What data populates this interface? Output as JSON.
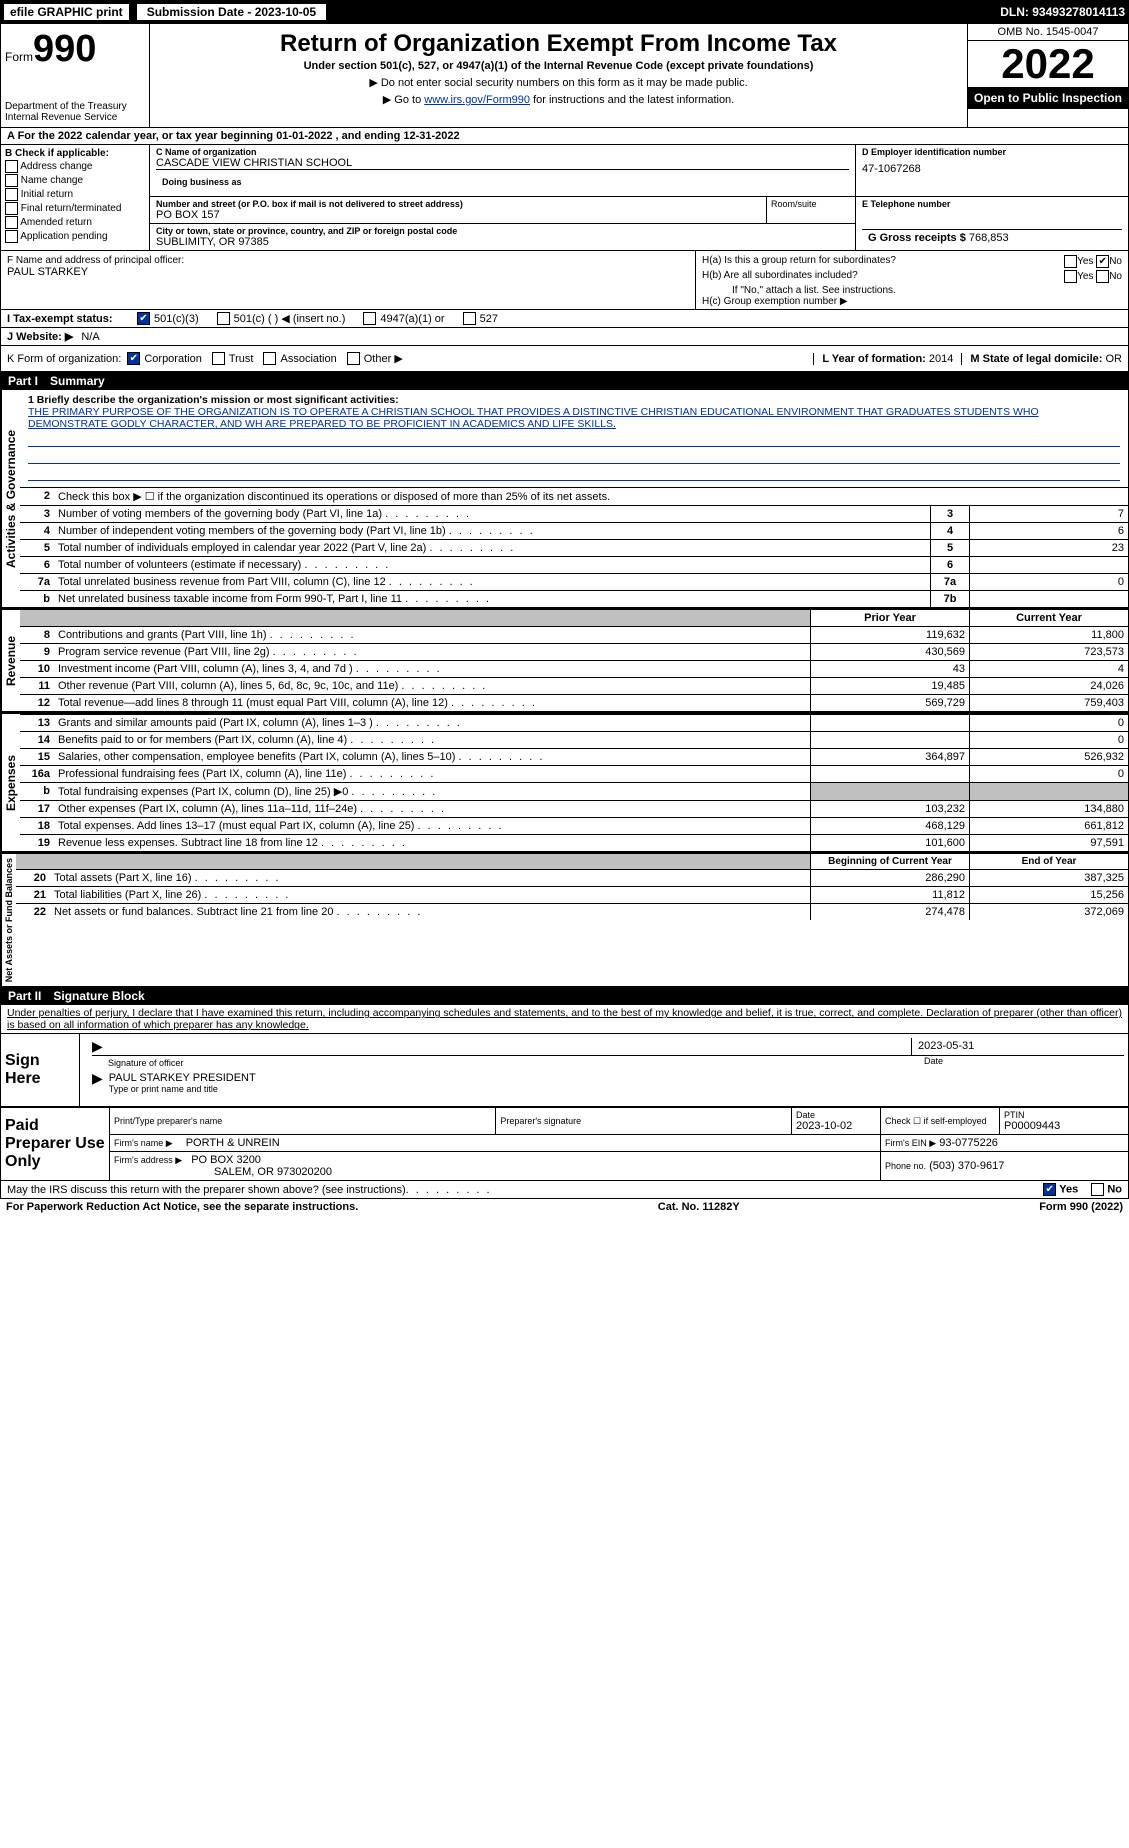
{
  "topbar": {
    "efile": "efile GRAPHIC print",
    "submission": "Submission Date - 2023-10-05",
    "dln": "DLN: 93493278014113"
  },
  "header": {
    "form_label": "Form",
    "form_number": "990",
    "title": "Return of Organization Exempt From Income Tax",
    "subtitle": "Under section 501(c), 527, or 4947(a)(1) of the Internal Revenue Code (except private foundations)",
    "warn": "▶ Do not enter social security numbers on this form as it may be made public.",
    "goto_prefix": "▶ Go to ",
    "goto_link": "www.irs.gov/Form990",
    "goto_suffix": " for instructions and the latest information.",
    "dept": "Department of the Treasury",
    "irs": "Internal Revenue Service",
    "omb": "OMB No. 1545-0047",
    "year": "2022",
    "inspection": "Open to Public Inspection"
  },
  "a_line": "A For the 2022 calendar year, or tax year beginning 01-01-2022    , and ending 12-31-2022",
  "check_b": {
    "label": "B Check if applicable:",
    "items": [
      "Address change",
      "Name change",
      "Initial return",
      "Final return/terminated",
      "Amended return",
      "Application pending"
    ]
  },
  "c": {
    "name_label": "C Name of organization",
    "name": "CASCADE VIEW CHRISTIAN SCHOOL",
    "dba_label": "Doing business as",
    "street_label": "Number and street (or P.O. box if mail is not delivered to street address)",
    "room_label": "Room/suite",
    "street": "PO BOX 157",
    "city_label": "City or town, state or province, country, and ZIP or foreign postal code",
    "city": "SUBLIMITY, OR  97385"
  },
  "d": {
    "label": "D Employer identification number",
    "ein": "47-1067268"
  },
  "e": {
    "label": "E Telephone number"
  },
  "g": {
    "label": "G Gross receipts $",
    "value": "768,853"
  },
  "f": {
    "label": "F  Name and address of principal officer:",
    "name": "PAUL STARKEY"
  },
  "h": {
    "a_label": "H(a)  Is this a group return for subordinates?",
    "b_label": "H(b)  Are all subordinates included?",
    "b_note": "If \"No,\" attach a list. See instructions.",
    "c_label": "H(c)  Group exemption number ▶",
    "yes": "Yes",
    "no": "No"
  },
  "i": {
    "label": "I  Tax-exempt status:",
    "opts": [
      "501(c)(3)",
      "501(c) (  ) ◀ (insert no.)",
      "4947(a)(1) or",
      "527"
    ]
  },
  "j": {
    "label": "J  Website: ▶",
    "value": "N/A"
  },
  "k": {
    "label": "K Form of organization:",
    "opts": [
      "Corporation",
      "Trust",
      "Association",
      "Other ▶"
    ]
  },
  "l": {
    "label": "L Year of formation:",
    "value": "2014"
  },
  "m": {
    "label": "M State of legal domicile:",
    "value": "OR"
  },
  "part1": {
    "title": "Part I",
    "name": "Summary"
  },
  "mission": {
    "label": "1  Briefly describe the organization's mission or most significant activities:",
    "text": "THE PRIMARY PURPOSE OF THE ORGANIZATION IS TO OPERATE A CHRISTIAN SCHOOL THAT PROVIDES A DISTINCTIVE CHRISTIAN EDUCATIONAL ENVIRONMENT THAT GRADUATES STUDENTS WHO DEMONSTRATE GODLY CHARACTER, AND WH ARE PREPARED TO BE PROFICIENT IN ACADEMICS AND LIFE SKILLS."
  },
  "governance": {
    "vert": "Activities & Governance",
    "line2": "Check this box ▶ ☐  if the organization discontinued its operations or disposed of more than 25% of its net assets.",
    "rows": [
      {
        "n": "3",
        "desc": "Number of voting members of the governing body (Part VI, line 1a)",
        "box": "3",
        "val": "7"
      },
      {
        "n": "4",
        "desc": "Number of independent voting members of the governing body (Part VI, line 1b)",
        "box": "4",
        "val": "6"
      },
      {
        "n": "5",
        "desc": "Total number of individuals employed in calendar year 2022 (Part V, line 2a)",
        "box": "5",
        "val": "23"
      },
      {
        "n": "6",
        "desc": "Total number of volunteers (estimate if necessary)",
        "box": "6",
        "val": ""
      },
      {
        "n": "7a",
        "desc": "Total unrelated business revenue from Part VIII, column (C), line 12",
        "box": "7a",
        "val": "0"
      },
      {
        "n": "b",
        "desc": "Net unrelated business taxable income from Form 990-T, Part I, line 11",
        "box": "7b",
        "val": ""
      }
    ]
  },
  "revenue": {
    "vert": "Revenue",
    "head_prior": "Prior Year",
    "head_current": "Current Year",
    "rows": [
      {
        "n": "8",
        "desc": "Contributions and grants (Part VIII, line 1h)",
        "prior": "119,632",
        "curr": "11,800"
      },
      {
        "n": "9",
        "desc": "Program service revenue (Part VIII, line 2g)",
        "prior": "430,569",
        "curr": "723,573"
      },
      {
        "n": "10",
        "desc": "Investment income (Part VIII, column (A), lines 3, 4, and 7d )",
        "prior": "43",
        "curr": "4"
      },
      {
        "n": "11",
        "desc": "Other revenue (Part VIII, column (A), lines 5, 6d, 8c, 9c, 10c, and 11e)",
        "prior": "19,485",
        "curr": "24,026"
      },
      {
        "n": "12",
        "desc": "Total revenue—add lines 8 through 11 (must equal Part VIII, column (A), line 12)",
        "prior": "569,729",
        "curr": "759,403"
      }
    ]
  },
  "expenses": {
    "vert": "Expenses",
    "rows": [
      {
        "n": "13",
        "desc": "Grants and similar amounts paid (Part IX, column (A), lines 1–3 )",
        "prior": "",
        "curr": "0"
      },
      {
        "n": "14",
        "desc": "Benefits paid to or for members (Part IX, column (A), line 4)",
        "prior": "",
        "curr": "0"
      },
      {
        "n": "15",
        "desc": "Salaries, other compensation, employee benefits (Part IX, column (A), lines 5–10)",
        "prior": "364,897",
        "curr": "526,932"
      },
      {
        "n": "16a",
        "desc": "Professional fundraising fees (Part IX, column (A), line 11e)",
        "prior": "",
        "curr": "0"
      },
      {
        "n": "b",
        "desc": "Total fundraising expenses (Part IX, column (D), line 25) ▶0",
        "prior": "GREY",
        "curr": "GREY"
      },
      {
        "n": "17",
        "desc": "Other expenses (Part IX, column (A), lines 11a–11d, 11f–24e)",
        "prior": "103,232",
        "curr": "134,880"
      },
      {
        "n": "18",
        "desc": "Total expenses. Add lines 13–17 (must equal Part IX, column (A), line 25)",
        "prior": "468,129",
        "curr": "661,812"
      },
      {
        "n": "19",
        "desc": "Revenue less expenses. Subtract line 18 from line 12",
        "prior": "101,600",
        "curr": "97,591"
      }
    ]
  },
  "netassets": {
    "vert": "Net Assets or Fund Balances",
    "head_begin": "Beginning of Current Year",
    "head_end": "End of Year",
    "rows": [
      {
        "n": "20",
        "desc": "Total assets (Part X, line 16)",
        "prior": "286,290",
        "curr": "387,325"
      },
      {
        "n": "21",
        "desc": "Total liabilities (Part X, line 26)",
        "prior": "11,812",
        "curr": "15,256"
      },
      {
        "n": "22",
        "desc": "Net assets or fund balances. Subtract line 21 from line 20",
        "prior": "274,478",
        "curr": "372,069"
      }
    ]
  },
  "part2": {
    "title": "Part II",
    "name": "Signature Block"
  },
  "penalty": "Under penalties of perjury, I declare that I have examined this return, including accompanying schedules and statements, and to the best of my knowledge and belief, it is true, correct, and complete. Declaration of preparer (other than officer) is based on all information of which preparer has any knowledge.",
  "sign": {
    "label": "Sign Here",
    "sig_officer": "Signature of officer",
    "date_label": "Date",
    "date": "2023-05-31",
    "name": "PAUL STARKEY PRESIDENT",
    "name_label": "Type or print name and title"
  },
  "preparer": {
    "label": "Paid Preparer Use Only",
    "print_label": "Print/Type preparer's name",
    "sig_label": "Preparer's signature",
    "date_label": "Date",
    "date": "2023-10-02",
    "check_label": "Check ☐ if self-employed",
    "ptin_label": "PTIN",
    "ptin": "P00009443",
    "firm_name_label": "Firm's name    ▶",
    "firm_name": "PORTH & UNREIN",
    "firm_ein_label": "Firm's EIN ▶",
    "firm_ein": "93-0775226",
    "firm_addr_label": "Firm's address ▶",
    "firm_addr1": "PO BOX 3200",
    "firm_addr2": "SALEM, OR  973020200",
    "phone_label": "Phone no.",
    "phone": "(503) 370-9617"
  },
  "may_discuss": "May the IRS discuss this return with the preparer shown above? (see instructions)",
  "footer": {
    "left": "For Paperwork Reduction Act Notice, see the separate instructions.",
    "center": "Cat. No. 11282Y",
    "right": "Form 990 (2022)"
  },
  "colors": {
    "link": "#003399",
    "black": "#000000",
    "grey": "#c0c0c0"
  }
}
